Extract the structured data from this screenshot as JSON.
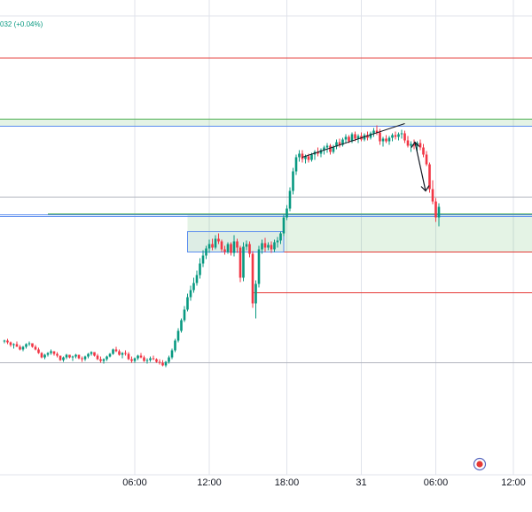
{
  "header": {
    "price_change_text": "032 (+0.04%)"
  },
  "colors": {
    "up": "#089981",
    "down": "#f23645",
    "grid": "#e0e3eb",
    "zone_green_fill": "rgba(76,175,80,0.15)",
    "zone_green_edge": "#4caf50",
    "zone_blue_edge": "#5b8def",
    "resistance_red": "#e53935",
    "trendline": "#131722",
    "axis_text": "#131722"
  },
  "icons": {
    "bottom_right_marker": "record-circle-icon"
  },
  "chart_data": {
    "type": "candlestick",
    "title": "",
    "xlabel": "",
    "ylabel": "",
    "x_ticks": [
      "06:00",
      "12:00",
      "18:00",
      "31",
      "06:00",
      "12:00"
    ],
    "grid": true,
    "candles": [
      [
        0,
        440,
        442,
        438,
        441
      ],
      [
        1,
        441,
        443,
        437,
        439
      ],
      [
        2,
        439,
        440,
        434,
        436
      ],
      [
        3,
        436,
        438,
        432,
        437
      ],
      [
        4,
        437,
        440,
        434,
        434
      ],
      [
        5,
        434,
        436,
        430,
        431
      ],
      [
        6,
        431,
        435,
        429,
        434
      ],
      [
        7,
        434,
        438,
        432,
        437
      ],
      [
        8,
        437,
        440,
        435,
        438
      ],
      [
        9,
        438,
        438,
        433,
        434
      ],
      [
        10,
        434,
        436,
        430,
        431
      ],
      [
        11,
        431,
        433,
        426,
        427
      ],
      [
        12,
        427,
        428,
        421,
        422
      ],
      [
        13,
        422,
        426,
        420,
        425
      ],
      [
        14,
        425,
        428,
        423,
        427
      ],
      [
        15,
        427,
        431,
        425,
        429
      ],
      [
        16,
        429,
        429,
        424,
        426
      ],
      [
        17,
        426,
        428,
        422,
        424
      ],
      [
        18,
        424,
        424,
        418,
        419
      ],
      [
        19,
        419,
        423,
        417,
        422
      ],
      [
        20,
        422,
        426,
        420,
        425
      ],
      [
        21,
        425,
        425,
        421,
        422
      ],
      [
        22,
        422,
        424,
        418,
        423
      ],
      [
        23,
        423,
        426,
        421,
        425
      ],
      [
        24,
        425,
        425,
        420,
        421
      ],
      [
        25,
        421,
        423,
        417,
        420
      ],
      [
        26,
        420,
        424,
        418,
        423
      ],
      [
        27,
        423,
        427,
        421,
        426
      ],
      [
        28,
        426,
        429,
        424,
        428
      ],
      [
        29,
        428,
        428,
        423,
        424
      ],
      [
        30,
        424,
        426,
        419,
        420
      ],
      [
        31,
        420,
        423,
        416,
        418
      ],
      [
        32,
        418,
        421,
        415,
        420
      ],
      [
        33,
        420,
        424,
        418,
        423
      ],
      [
        34,
        423,
        427,
        422,
        426
      ],
      [
        35,
        426,
        432,
        425,
        431
      ],
      [
        36,
        431,
        434,
        428,
        429
      ],
      [
        37,
        429,
        431,
        424,
        425
      ],
      [
        38,
        425,
        428,
        421,
        427
      ],
      [
        39,
        427,
        430,
        424,
        426
      ],
      [
        40,
        426,
        428,
        419,
        420
      ],
      [
        41,
        420,
        423,
        416,
        418
      ],
      [
        42,
        418,
        422,
        416,
        421
      ],
      [
        43,
        421,
        425,
        419,
        424
      ],
      [
        44,
        424,
        427,
        421,
        422
      ],
      [
        45,
        422,
        424,
        417,
        418
      ],
      [
        46,
        418,
        421,
        415,
        419
      ],
      [
        47,
        419,
        423,
        417,
        421
      ],
      [
        48,
        421,
        424,
        419,
        420
      ],
      [
        49,
        420,
        421,
        416,
        417
      ],
      [
        50,
        417,
        420,
        414,
        416
      ],
      [
        51,
        416,
        419,
        412,
        413
      ],
      [
        52,
        413,
        418,
        411,
        417
      ],
      [
        53,
        417,
        424,
        415,
        422
      ],
      [
        54,
        422,
        432,
        420,
        430
      ],
      [
        55,
        430,
        443,
        428,
        441
      ],
      [
        56,
        441,
        455,
        439,
        452
      ],
      [
        57,
        452,
        466,
        450,
        464
      ],
      [
        58,
        464,
        480,
        462,
        476
      ],
      [
        59,
        476,
        494,
        474,
        490
      ],
      [
        60,
        490,
        503,
        486,
        498
      ],
      [
        61,
        498,
        512,
        495,
        506
      ],
      [
        62,
        506,
        520,
        503,
        515
      ],
      [
        63,
        515,
        534,
        511,
        528
      ],
      [
        64,
        528,
        543,
        524,
        537
      ],
      [
        65,
        537,
        548,
        533,
        545
      ],
      [
        66,
        545,
        555,
        540,
        550
      ],
      [
        67,
        550,
        556,
        543,
        546
      ],
      [
        68,
        546,
        560,
        544,
        556
      ],
      [
        69,
        556,
        562,
        550,
        553
      ],
      [
        70,
        553,
        555,
        541,
        544
      ],
      [
        71,
        544,
        548,
        538,
        541
      ],
      [
        72,
        541,
        552,
        539,
        550
      ],
      [
        73,
        550,
        552,
        537,
        540
      ],
      [
        74,
        540,
        560,
        536,
        553
      ],
      [
        75,
        553,
        556,
        540,
        546
      ],
      [
        76,
        546,
        548,
        507,
        512
      ],
      [
        77,
        512,
        552,
        508,
        547
      ],
      [
        78,
        547,
        554,
        543,
        550
      ],
      [
        79,
        550,
        553,
        535,
        539
      ],
      [
        80,
        539,
        542,
        478,
        483
      ],
      [
        81,
        483,
        509,
        466,
        505
      ],
      [
        82,
        505,
        548,
        501,
        544
      ],
      [
        83,
        544,
        555,
        539,
        551
      ],
      [
        84,
        551,
        557,
        541,
        546
      ],
      [
        85,
        546,
        552,
        543,
        549
      ],
      [
        86,
        549,
        553,
        540,
        544
      ],
      [
        87,
        544,
        555,
        541,
        552
      ],
      [
        88,
        552,
        558,
        546,
        554
      ],
      [
        89,
        554,
        564,
        550,
        562
      ],
      [
        90,
        562,
        583,
        559,
        580
      ],
      [
        91,
        580,
        594,
        577,
        590
      ],
      [
        92,
        590,
        614,
        587,
        610
      ],
      [
        93,
        610,
        636,
        606,
        632
      ],
      [
        94,
        632,
        651,
        628,
        648
      ],
      [
        95,
        648,
        656,
        643,
        652
      ],
      [
        96,
        652,
        656,
        642,
        646
      ],
      [
        97,
        646,
        651,
        641,
        649
      ],
      [
        98,
        649,
        652,
        642,
        645
      ],
      [
        99,
        645,
        653,
        643,
        651
      ],
      [
        100,
        651,
        656,
        645,
        654
      ],
      [
        101,
        654,
        659,
        649,
        652
      ],
      [
        102,
        652,
        658,
        648,
        656
      ],
      [
        103,
        656,
        661,
        651,
        659
      ],
      [
        104,
        659,
        664,
        653,
        661
      ],
      [
        105,
        661,
        663,
        651,
        654
      ],
      [
        106,
        654,
        662,
        652,
        660
      ],
      [
        107,
        660,
        668,
        657,
        665
      ],
      [
        108,
        665,
        669,
        659,
        662
      ],
      [
        109,
        662,
        670,
        660,
        668
      ],
      [
        110,
        668,
        674,
        664,
        671
      ],
      [
        111,
        671,
        673,
        664,
        666
      ],
      [
        112,
        666,
        676,
        664,
        674
      ],
      [
        113,
        674,
        677,
        666,
        669
      ],
      [
        114,
        669,
        674,
        664,
        672
      ],
      [
        115,
        672,
        676,
        666,
        668
      ],
      [
        116,
        668,
        675,
        666,
        673
      ],
      [
        117,
        673,
        677,
        667,
        670
      ],
      [
        118,
        670,
        677,
        668,
        675
      ],
      [
        119,
        675,
        681,
        671,
        678
      ],
      [
        120,
        678,
        684,
        673,
        676
      ],
      [
        121,
        676,
        680,
        662,
        666
      ],
      [
        122,
        666,
        671,
        660,
        669
      ],
      [
        123,
        669,
        673,
        664,
        666
      ],
      [
        124,
        666,
        672,
        662,
        670
      ],
      [
        125,
        670,
        675,
        666,
        673
      ],
      [
        126,
        673,
        677,
        668,
        671
      ],
      [
        127,
        671,
        676,
        667,
        674
      ],
      [
        128,
        674,
        679,
        669,
        675
      ],
      [
        129,
        675,
        678,
        664,
        667
      ],
      [
        130,
        667,
        672,
        659,
        661
      ],
      [
        131,
        661,
        666,
        654,
        663
      ],
      [
        132,
        663,
        668,
        657,
        661
      ],
      [
        133,
        661,
        666,
        655,
        664
      ],
      [
        134,
        664,
        668,
        656,
        659
      ],
      [
        135,
        659,
        663,
        648,
        651
      ],
      [
        136,
        651,
        655,
        638,
        640
      ],
      [
        137,
        640,
        642,
        608,
        612
      ],
      [
        138,
        612,
        622,
        595,
        598
      ],
      [
        139,
        598,
        602,
        575,
        580
      ],
      [
        140,
        580,
        596,
        570,
        592
      ]
    ],
    "trendline": {
      "x1": 96,
      "y1": 648,
      "x2": 129,
      "y2": 686
    },
    "arrow": {
      "x": 134,
      "y_top": 665,
      "y_bottom": 610
    },
    "levels": [
      {
        "kind": "red-line",
        "y": 760,
        "x_from": -22
      },
      {
        "kind": "green-line",
        "y": 691,
        "x_from": -22
      },
      {
        "kind": "blue-line",
        "y": 683,
        "x_from": -22
      },
      {
        "kind": "grey-line",
        "y": 603,
        "x_from": -22
      },
      {
        "kind": "blue-line",
        "y": 583,
        "x_from": -22
      },
      {
        "kind": "blue-line",
        "y": 581,
        "x_from": -22
      },
      {
        "kind": "green-line",
        "y": 584,
        "x_from": 14
      },
      {
        "kind": "red-line",
        "y": 541,
        "x_from": 59
      },
      {
        "kind": "red-line",
        "y": 495,
        "x_from": 80
      },
      {
        "kind": "grey-line",
        "y": 416,
        "x_from": -22
      }
    ],
    "zones": [
      {
        "kind": "green-zone",
        "y_top": 691,
        "y_bottom": 683,
        "x_from": -22
      },
      {
        "kind": "green-zone",
        "y_top": 584,
        "y_bottom": 541,
        "x_from": 59
      }
    ],
    "boxes": [
      {
        "kind": "blue-box",
        "x_from": 59,
        "x_to": 90,
        "y_top": 564,
        "y_bottom": 541
      }
    ],
    "x_tick_positions": [
      42,
      66,
      91,
      115,
      139,
      164
    ]
  }
}
